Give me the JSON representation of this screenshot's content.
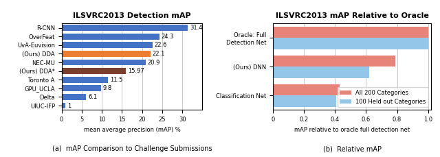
{
  "chart_data": [
    {
      "type": "bar",
      "orientation": "horizontal",
      "title": "ILSVRC2013 Detection mAP",
      "categories": [
        "R-CNN",
        "OverFeat",
        "UvA-Euvision",
        "(Ours) DDA",
        "NEC-MU",
        "(Ours) DDA*",
        "Toronto A",
        "GPU_UCLA",
        "Delta",
        "UIUC-IFP"
      ],
      "values": [
        31.4,
        24.3,
        22.6,
        22.1,
        20.9,
        15.97,
        11.5,
        9.8,
        6.1,
        1
      ],
      "colors": [
        "#4472C4",
        "#4472C4",
        "#4472C4",
        "#ED7D31",
        "#4472C4",
        "#7B3F2E",
        "#4472C4",
        "#4472C4",
        "#4472C4",
        "#4472C4"
      ],
      "x_label": "mean average precision (mAP) %",
      "xlim": [
        0,
        35
      ],
      "xticks": [
        0,
        5,
        10,
        15,
        20,
        25,
        30
      ],
      "grid": true,
      "data_labels": true,
      "annotations": [
        "(a)  mAP Comparison to Challenge Submissions"
      ]
    },
    {
      "type": "bar",
      "orientation": "horizontal",
      "title": "ILSVRC2013 mAP Relative to Oracle",
      "categories": [
        "Oracle: Full\nDetection Net",
        "(Ours) DNN",
        "Classification Net"
      ],
      "series": [
        {
          "name": "All 200 Categories",
          "color": "#E8837A",
          "values": [
            1.0,
            0.79,
            0.43
          ]
        },
        {
          "name": "100 Held out Categories",
          "color": "#93C6E8",
          "values": [
            1.0,
            0.62,
            0.41
          ]
        }
      ],
      "x_label": "mAP relative to oracle full detection net",
      "xlim": [
        0,
        1.02
      ],
      "xticks": [
        0,
        0.2,
        0.4,
        0.6,
        0.8,
        {
          "value": 1,
          "label": "1.0"
        }
      ],
      "grid": true,
      "legend": "lower right",
      "annotations": [
        "(b)  Relative mAP"
      ]
    }
  ]
}
